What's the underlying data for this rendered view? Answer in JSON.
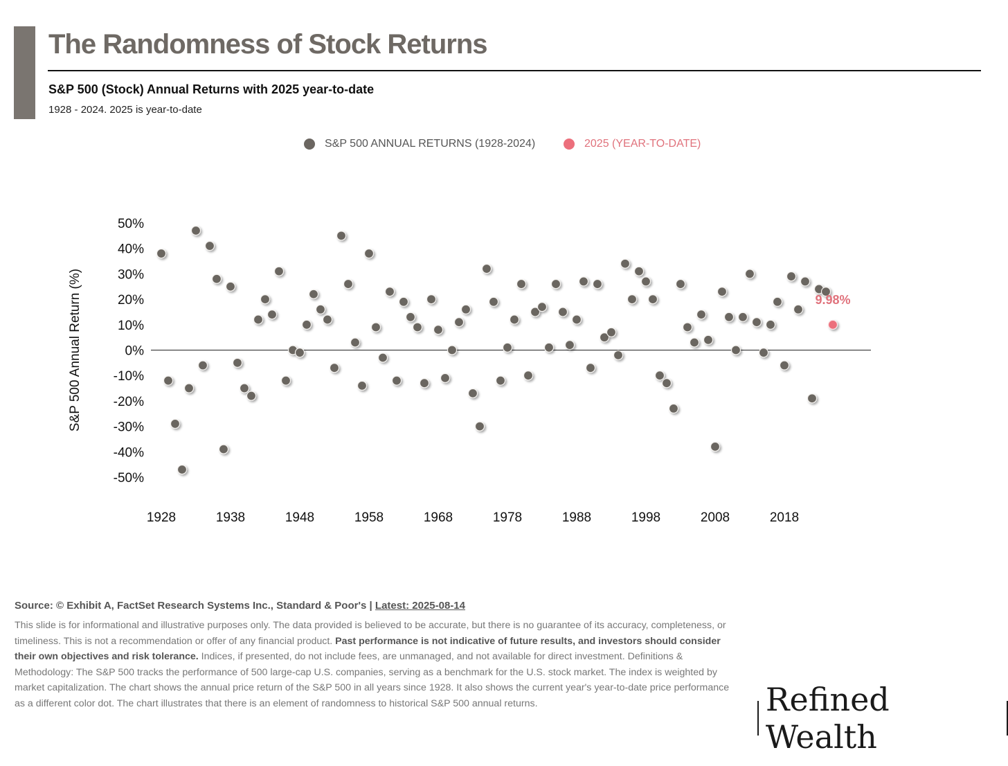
{
  "header": {
    "title": "The Randomness of Stock Returns",
    "subtitle": "S&P 500 (Stock) Annual Returns with 2025 year-to-date",
    "subsubtitle": "1928 - 2024. 2025 is year-to-date"
  },
  "legend": {
    "historical_label": "S&P 500 ANNUAL RETURNS (1928-2024)",
    "ytd_label": "2025 (YEAR-TO-DATE)"
  },
  "colors": {
    "accent_bar": "#7a7570",
    "historical_dot": "#6b6661",
    "ytd_dot": "#ec6f7c",
    "ytd_text": "#e0727c",
    "title": "#6e6964"
  },
  "chart_data": {
    "type": "scatter",
    "title": "The Randomness of Stock Returns",
    "xlabel": "",
    "ylabel": "S&P 500 Annual Return (%)",
    "xlim": [
      1926.5,
      2030.5
    ],
    "ylim": [
      -50,
      50
    ],
    "xticks": [
      1928,
      1938,
      1948,
      1958,
      1968,
      1978,
      1988,
      1998,
      2008,
      2018
    ],
    "yticks": [
      50,
      40,
      30,
      20,
      10,
      0,
      -10,
      -20,
      -30,
      -40,
      -50
    ],
    "ytick_labels": [
      "50%",
      "40%",
      "30%",
      "20%",
      "10%",
      "0%",
      "-10%",
      "-20%",
      "-30%",
      "-40%",
      "-50%"
    ],
    "zero_line": true,
    "series": [
      {
        "name": "S&P 500 ANNUAL RETURNS (1928-2024)",
        "x": [
          1928,
          1929,
          1930,
          1931,
          1932,
          1933,
          1934,
          1935,
          1936,
          1937,
          1938,
          1939,
          1940,
          1941,
          1942,
          1943,
          1944,
          1945,
          1946,
          1947,
          1948,
          1949,
          1950,
          1951,
          1952,
          1953,
          1954,
          1955,
          1956,
          1957,
          1958,
          1959,
          1960,
          1961,
          1962,
          1963,
          1964,
          1965,
          1966,
          1967,
          1968,
          1969,
          1970,
          1971,
          1972,
          1973,
          1974,
          1975,
          1976,
          1977,
          1978,
          1979,
          1980,
          1981,
          1982,
          1983,
          1984,
          1985,
          1986,
          1987,
          1988,
          1989,
          1990,
          1991,
          1992,
          1993,
          1994,
          1995,
          1996,
          1997,
          1998,
          1999,
          2000,
          2001,
          2002,
          2003,
          2004,
          2005,
          2006,
          2007,
          2008,
          2009,
          2010,
          2011,
          2012,
          2013,
          2014,
          2015,
          2016,
          2017,
          2018,
          2019,
          2020,
          2021,
          2022,
          2023,
          2024
        ],
        "values": [
          38,
          -12,
          -29,
          -47,
          -15,
          47,
          -6,
          41,
          28,
          -39,
          25,
          -5,
          -15,
          -18,
          12,
          20,
          14,
          31,
          -12,
          0,
          -1,
          10,
          22,
          16,
          12,
          -7,
          45,
          26,
          3,
          -14,
          38,
          9,
          -3,
          23,
          -12,
          19,
          13,
          9,
          -13,
          20,
          8,
          -11,
          0,
          11,
          16,
          -17,
          -30,
          32,
          19,
          -12,
          1,
          12,
          26,
          -10,
          15,
          17,
          1,
          26,
          15,
          2,
          12,
          27,
          -7,
          26,
          5,
          7,
          -2,
          34,
          20,
          31,
          27,
          20,
          -10,
          -13,
          -23,
          26,
          9,
          3,
          14,
          4,
          -38,
          23,
          13,
          0,
          13,
          30,
          11,
          -1,
          10,
          19,
          -6,
          29,
          16,
          27,
          -19,
          24,
          23
        ]
      },
      {
        "name": "2025 (YEAR-TO-DATE)",
        "x": [
          2025
        ],
        "values": [
          9.98
        ],
        "label": "9.98%"
      }
    ]
  },
  "footer": {
    "source": "Source: © Exhibit A, FactSet Research Systems Inc., Standard & Poor's | ",
    "latest": "Latest: 2025-08-14",
    "disclaimer_1": "This slide is for informational and illustrative purposes only. The data provided is believed to be accurate, but there is no guarantee of its accuracy, completeness, or timeliness. This is not a recommendation or offer of any financial product. ",
    "disclaimer_bold": "Past performance is not indicative of future results, and investors should consider their own objectives and risk tolerance.",
    "disclaimer_2": " Indices, if presented, do not include fees, are unmanaged, and not available for direct investment. Definitions & Methodology: The S&P 500 tracks the performance of 500 large-cap U.S. companies, serving as a benchmark for the U.S. stock market. The index is weighted by market capitalization. The chart shows the annual price return of the S&P 500 in all years since 1928. It also shows the current year's year-to-date price performance as a different color dot. The chart illustrates that there is an element of randomness to historical S&P 500 annual returns."
  },
  "logo": {
    "text": "Refined Wealth"
  }
}
